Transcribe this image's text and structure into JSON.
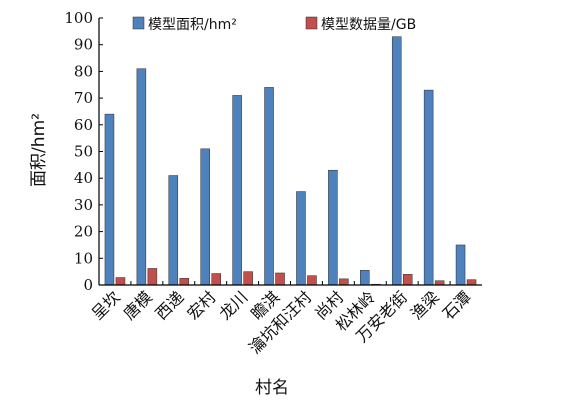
{
  "chart_data": {
    "type": "bar",
    "categories": [
      "呈坎",
      "唐模",
      "西递",
      "宏村",
      "龙川",
      "瞻淇",
      "瀹坑和汪村",
      "尚村",
      "松林岭",
      "万安老街",
      "渔梁",
      "石潭"
    ],
    "series": [
      {
        "name": "模型面积/hm²",
        "color": "#4f81bd",
        "values": [
          64,
          81,
          41,
          51,
          71,
          74,
          35,
          43,
          5.5,
          93,
          73,
          15
        ]
      },
      {
        "name": "模型数据量/GB",
        "color": "#c0504d",
        "values": [
          2.8,
          6.2,
          2.5,
          4.3,
          5.0,
          4.5,
          3.5,
          2.3,
          0.3,
          4.0,
          1.6,
          2.0
        ]
      }
    ],
    "xlabel": "村名",
    "ylabel": "面积/hm²",
    "ylim": [
      0,
      100
    ],
    "yticks": [
      0,
      10,
      20,
      30,
      40,
      50,
      60,
      70,
      80,
      90,
      100
    ],
    "grid": false,
    "legend_position": "top"
  }
}
